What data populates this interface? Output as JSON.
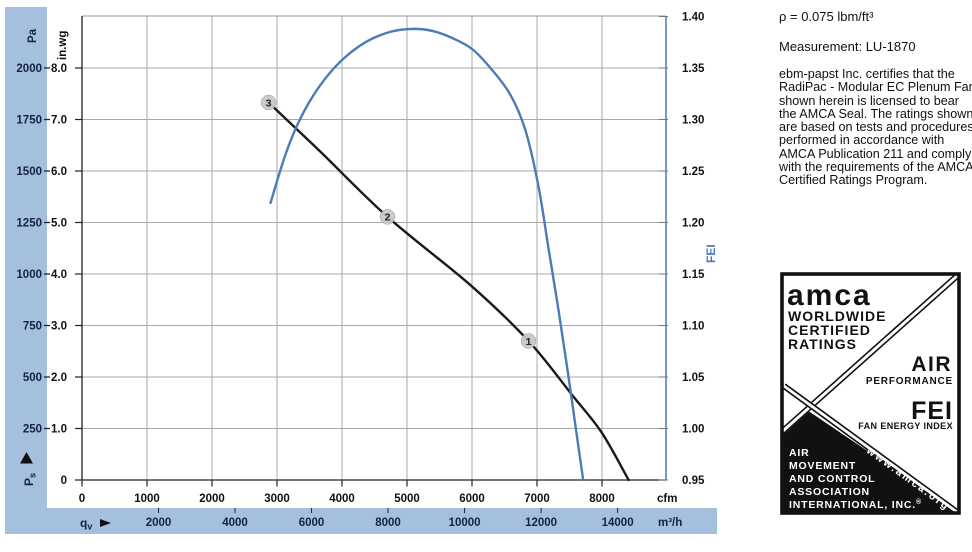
{
  "panel": {
    "density": "ρ = 0.075 lbm/ft³",
    "measurement": "Measurement: LU-1870",
    "certification": "ebm-papst Inc. certifies that the RadiPac - Modular EC Plenum Fan shown herein is licensed to bear the AMCA Seal. The ratings shown are based on tests and procedures performed in accordance with AMCA Publication 211 and comply with the requirements of the AMCA Certified Ratings Program."
  },
  "seal": {
    "brand": "amca",
    "line1": "WORLDWIDE",
    "line2": "CERTIFIED",
    "line3": "RATINGS",
    "air": "AIR",
    "performance": "PERFORMANCE",
    "fei": "FEI",
    "fei_sub": "FAN ENERGY INDEX",
    "org_lines": [
      "AIR",
      "MOVEMENT",
      "AND CONTROL",
      "ASSOCIATION",
      "INTERNATIONAL, INC."
    ],
    "reg": "®",
    "url": "www.amca.org"
  },
  "chart_data": {
    "type": "line",
    "title": "",
    "grid": true,
    "x_axis": {
      "unit_primary": "cfm",
      "unit_secondary": "m³/h",
      "flow_label": {
        "main": "q",
        "sub": "v"
      },
      "primary_ticks": [
        0,
        1000,
        2000,
        3000,
        4000,
        5000,
        6000,
        7000,
        8000
      ],
      "secondary_ticks": [
        2000,
        4000,
        6000,
        8000,
        10000,
        12000,
        14000
      ],
      "xlim_cfm": [
        0,
        8985
      ]
    },
    "y_left": {
      "unit_pa": "Pa",
      "unit_inwg": "in.wg",
      "pressure_label": {
        "main": "P",
        "sub": "s"
      },
      "pa_ticks": [
        2000,
        1750,
        1500,
        1250,
        1000,
        750,
        500,
        250
      ],
      "inwg_ticks": [
        8,
        7,
        6,
        5,
        4,
        3,
        2,
        1,
        0
      ],
      "ylim_inwg": [
        0,
        9.01
      ]
    },
    "y_right": {
      "unit": "FEI",
      "ticks": [
        1.4,
        1.35,
        1.3,
        1.25,
        1.2,
        1.15,
        1.1,
        1.05,
        1.0,
        0.95
      ],
      "ylim": [
        0.95,
        1.4015
      ]
    },
    "series": [
      {
        "name": "static-pressure-curve",
        "axis": "inwg",
        "color": "#1a1a1a",
        "x_cfm": [
          2870,
          3670,
          4700,
          5970,
          6870,
          7540,
          7990,
          8410
        ],
        "y": [
          7.33,
          6.37,
          5.11,
          3.79,
          2.7,
          1.65,
          0.93,
          0.0
        ]
      },
      {
        "name": "fei-curve",
        "axis": "fei",
        "color": "#4a7cb8",
        "x_cfm": [
          2900,
          3130,
          3360,
          3640,
          3970,
          4360,
          4740,
          5080,
          5390,
          5700,
          6010,
          6310,
          6590,
          6820,
          7020,
          7170,
          7330,
          7470,
          7590,
          7710
        ],
        "y": [
          1.219,
          1.266,
          1.301,
          1.331,
          1.356,
          1.375,
          1.385,
          1.388,
          1.386,
          1.379,
          1.368,
          1.348,
          1.324,
          1.29,
          1.236,
          1.178,
          1.115,
          1.057,
          1.003,
          0.95
        ]
      }
    ],
    "markers": [
      {
        "label": "3",
        "cfm": 2870,
        "inwg": 7.33
      },
      {
        "label": "2",
        "cfm": 4700,
        "inwg": 5.11
      },
      {
        "label": "1",
        "cfm": 6870,
        "inwg": 2.7
      }
    ],
    "colors": {
      "band": "#a5bfde",
      "grid": "#a9a9a9",
      "axis_dark": "#222222",
      "fei_axis": "#4a7cb8",
      "navy_text": "#14233f",
      "black_text": "#111111",
      "marker_fill": "#c8c8c8"
    }
  }
}
